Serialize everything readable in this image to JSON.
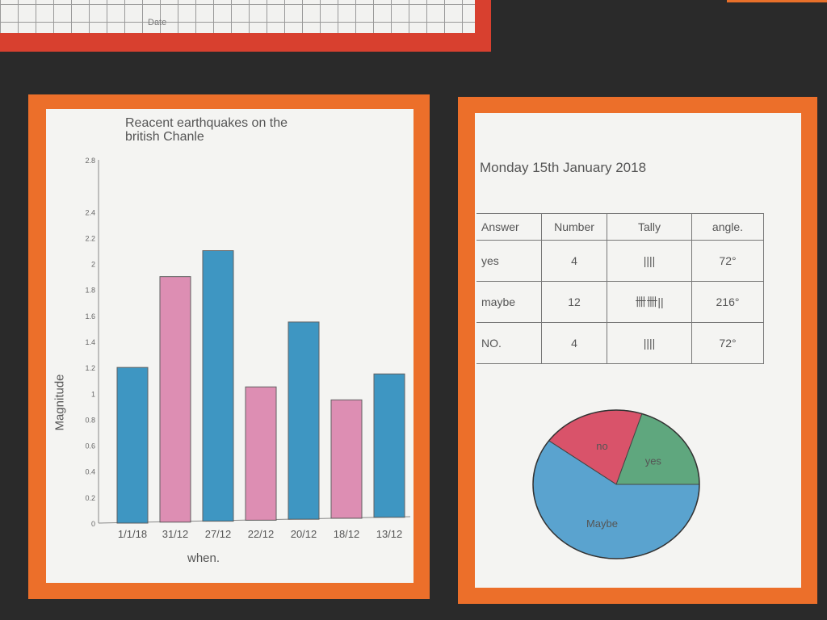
{
  "top_sheet": {
    "text": "Date"
  },
  "chart_data": [
    {
      "type": "bar",
      "title": "Reacent earthquakes on the british Chanle",
      "xlabel": "when.",
      "ylabel": "Magnitude",
      "categories": [
        "1/1/18",
        "31/12",
        "27/12",
        "22/12",
        "20/12",
        "18/12",
        "13/12"
      ],
      "values": [
        1.2,
        1.9,
        2.1,
        1.05,
        1.55,
        0.95,
        1.15
      ],
      "bar_colors": [
        "#2f8fbf",
        "#dc86ae",
        "#2f8fbf",
        "#dc86ae",
        "#2f8fbf",
        "#dc86ae",
        "#2f8fbf"
      ],
      "yticks": [
        0,
        0.2,
        0.4,
        0.6,
        0.8,
        1,
        1.2,
        1.4,
        1.6,
        1.8,
        2,
        2.2,
        2.4,
        2.8
      ],
      "ytick_labels": [
        "0",
        "0.2",
        "0.4",
        "0.6",
        "0.8",
        "1",
        "1.2",
        "1.4",
        "1.6",
        "1.8",
        "2",
        "2.2",
        "2.4",
        "2.8"
      ],
      "ylim": [
        0,
        2.8
      ]
    },
    {
      "type": "pie",
      "labels": [
        "yes",
        "no",
        "Maybe"
      ],
      "values": [
        72,
        72,
        216
      ],
      "colors": [
        "#5fa77e",
        "#d9536a",
        "#5aa3cf"
      ]
    }
  ],
  "survey": {
    "date": "Monday 15th January 2018",
    "headers": [
      "Answer",
      "Number",
      "Tally",
      "angle."
    ],
    "rows": [
      [
        "yes",
        "4",
        "||||",
        "72°"
      ],
      [
        "maybe",
        "12",
        "卌卌||",
        "216°"
      ],
      [
        "NO.",
        "4",
        "||||",
        "72°"
      ]
    ]
  }
}
